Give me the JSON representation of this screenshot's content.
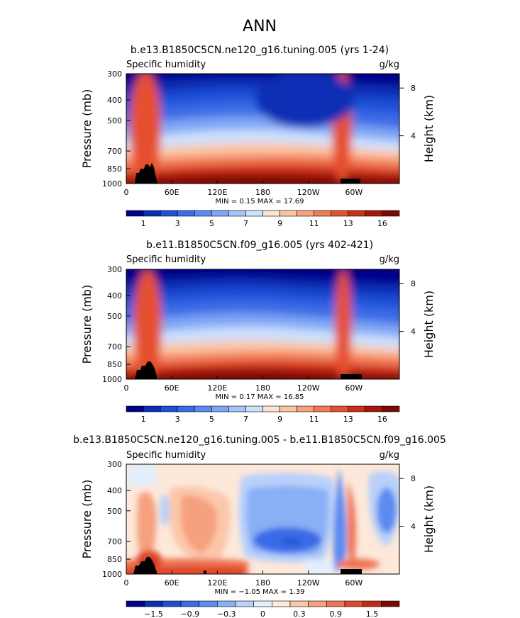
{
  "page_title": "ANN",
  "chart_data": [
    {
      "type": "heatmap",
      "title": "b.e13.B1850C5CN.ne120_g16.tuning.005 (yrs 1-24)",
      "variable_label": "Specific humidity",
      "units_label": "g/kg",
      "ylabel": "Pressure (mb)",
      "ylabel_right": "Height (km)",
      "y_ticks": [
        "300",
        "400",
        "500",
        "700",
        "850",
        "1000"
      ],
      "y_right_ticks": [
        "8",
        "4"
      ],
      "x_ticks": [
        "0",
        "60E",
        "120E",
        "180",
        "120W",
        "60W"
      ],
      "stats_text": "MIN =    0.15   MAX =   17.69",
      "colorbar_labels": [
        "1",
        "3",
        "5",
        "7",
        "9",
        "11",
        "13",
        "16"
      ],
      "colorbar_colors": [
        "#00008b",
        "#0a2fb5",
        "#1f4fd6",
        "#3b6be6",
        "#5b8af0",
        "#7ea6f5",
        "#a5c4fa",
        "#cde0fd",
        "#fde3d0",
        "#fcc4a3",
        "#f8a17a",
        "#f27a55",
        "#e5502f",
        "#cc2e16",
        "#a6170b",
        "#7a0a05"
      ]
    },
    {
      "type": "heatmap",
      "title": "b.e11.B1850C5CN.f09_g16.005 (yrs 402-421)",
      "variable_label": "Specific humidity",
      "units_label": "g/kg",
      "ylabel": "Pressure (mb)",
      "ylabel_right": "Height (km)",
      "y_ticks": [
        "300",
        "400",
        "500",
        "700",
        "850",
        "1000"
      ],
      "y_right_ticks": [
        "8",
        "4"
      ],
      "x_ticks": [
        "0",
        "60E",
        "120E",
        "180",
        "120W",
        "60W"
      ],
      "stats_text": "MIN =    0.17   MAX =   16.85",
      "colorbar_labels": [
        "1",
        "3",
        "5",
        "7",
        "9",
        "11",
        "13",
        "16"
      ],
      "colorbar_colors": [
        "#00008b",
        "#0a2fb5",
        "#1f4fd6",
        "#3b6be6",
        "#5b8af0",
        "#7ea6f5",
        "#a5c4fa",
        "#cde0fd",
        "#fde3d0",
        "#fcc4a3",
        "#f8a17a",
        "#f27a55",
        "#e5502f",
        "#cc2e16",
        "#a6170b",
        "#7a0a05"
      ]
    },
    {
      "type": "heatmap",
      "title": "b.e13.B1850C5CN.ne120_g16.tuning.005 - b.e11.B1850C5CN.f09_g16.005",
      "variable_label": "Specific humidity",
      "units_label": "g/kg",
      "ylabel": "Pressure (mb)",
      "ylabel_right": "Height (km)",
      "y_ticks": [
        "300",
        "400",
        "500",
        "700",
        "850",
        "1000"
      ],
      "y_right_ticks": [
        "8",
        "4"
      ],
      "x_ticks": [
        "0",
        "60E",
        "120E",
        "180",
        "120W",
        "60W"
      ],
      "stats_text": "MIN =   −1.05   MAX =    1.39",
      "colorbar_labels": [
        "−1.5",
        "−0.9",
        "−0.3",
        "0",
        "0.3",
        "0.9",
        "1.5"
      ],
      "colorbar_colors": [
        "#00008b",
        "#0a2fb5",
        "#1f4fd6",
        "#3b6be6",
        "#5b8af0",
        "#89aff5",
        "#b8d0fa",
        "#e3eefd",
        "#fde8da",
        "#fbc7ab",
        "#f6a07e",
        "#ee7655",
        "#e04a2b",
        "#c42a13",
        "#7a0a05"
      ]
    }
  ]
}
